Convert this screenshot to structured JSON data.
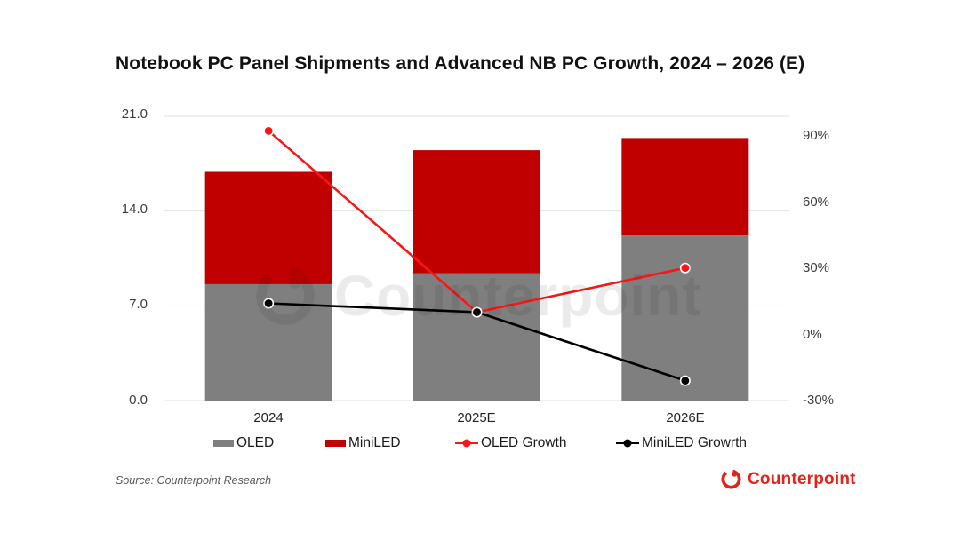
{
  "title": "Notebook PC Panel Shipments and Advanced NB PC Growth, 2024 – 2026 (E)",
  "source": "Source: Counterpoint Research",
  "watermark": {
    "text": "Counterpoint"
  },
  "logo": {
    "text": "Counterpoint",
    "color": "#e2231a"
  },
  "legend": {
    "items": [
      {
        "label": "OLED",
        "type": "bar",
        "color": "#7f7f7f"
      },
      {
        "label": "MiniLED",
        "type": "bar",
        "color": "#c00000"
      },
      {
        "label": "OLED Growth",
        "type": "line",
        "color": "#f91616"
      },
      {
        "label": "MiniLED Growrth",
        "type": "line",
        "color": "#000000"
      }
    ]
  },
  "chart_data": {
    "type": "combo-stacked-bar-line",
    "title": "Notebook PC Panel Shipments and Advanced NB PC Growth, 2024 – 2026 (E)",
    "categories": [
      "2024",
      "2025E",
      "2026E"
    ],
    "bar_series": [
      {
        "name": "OLED",
        "axis": "left",
        "color": "#7f7f7f",
        "values": [
          8.6,
          9.4,
          12.2
        ]
      },
      {
        "name": "MiniLED",
        "axis": "left",
        "color": "#c00000",
        "values": [
          8.3,
          9.1,
          7.2
        ]
      }
    ],
    "line_series": [
      {
        "name": "OLED Growth",
        "axis": "right",
        "color": "#f91616",
        "values": [
          92,
          10,
          30
        ]
      },
      {
        "name": "MiniLED Growrth",
        "axis": "right",
        "color": "#000000",
        "values": [
          14,
          10,
          -21
        ]
      }
    ],
    "left_axis": {
      "min": 0,
      "max": 21,
      "ticks": [
        0,
        7,
        14,
        21
      ],
      "tick_labels": [
        "0.0",
        "7.0",
        "14.0",
        "21.0"
      ]
    },
    "right_axis": {
      "min": -30,
      "max": 98.6,
      "ticks": [
        -30,
        0,
        30,
        60,
        90
      ],
      "tick_labels": [
        "-30%",
        "0%",
        "30%",
        "60%",
        "90%"
      ]
    },
    "grid": "horizontal",
    "legend_position": "bottom",
    "stacked": true
  }
}
